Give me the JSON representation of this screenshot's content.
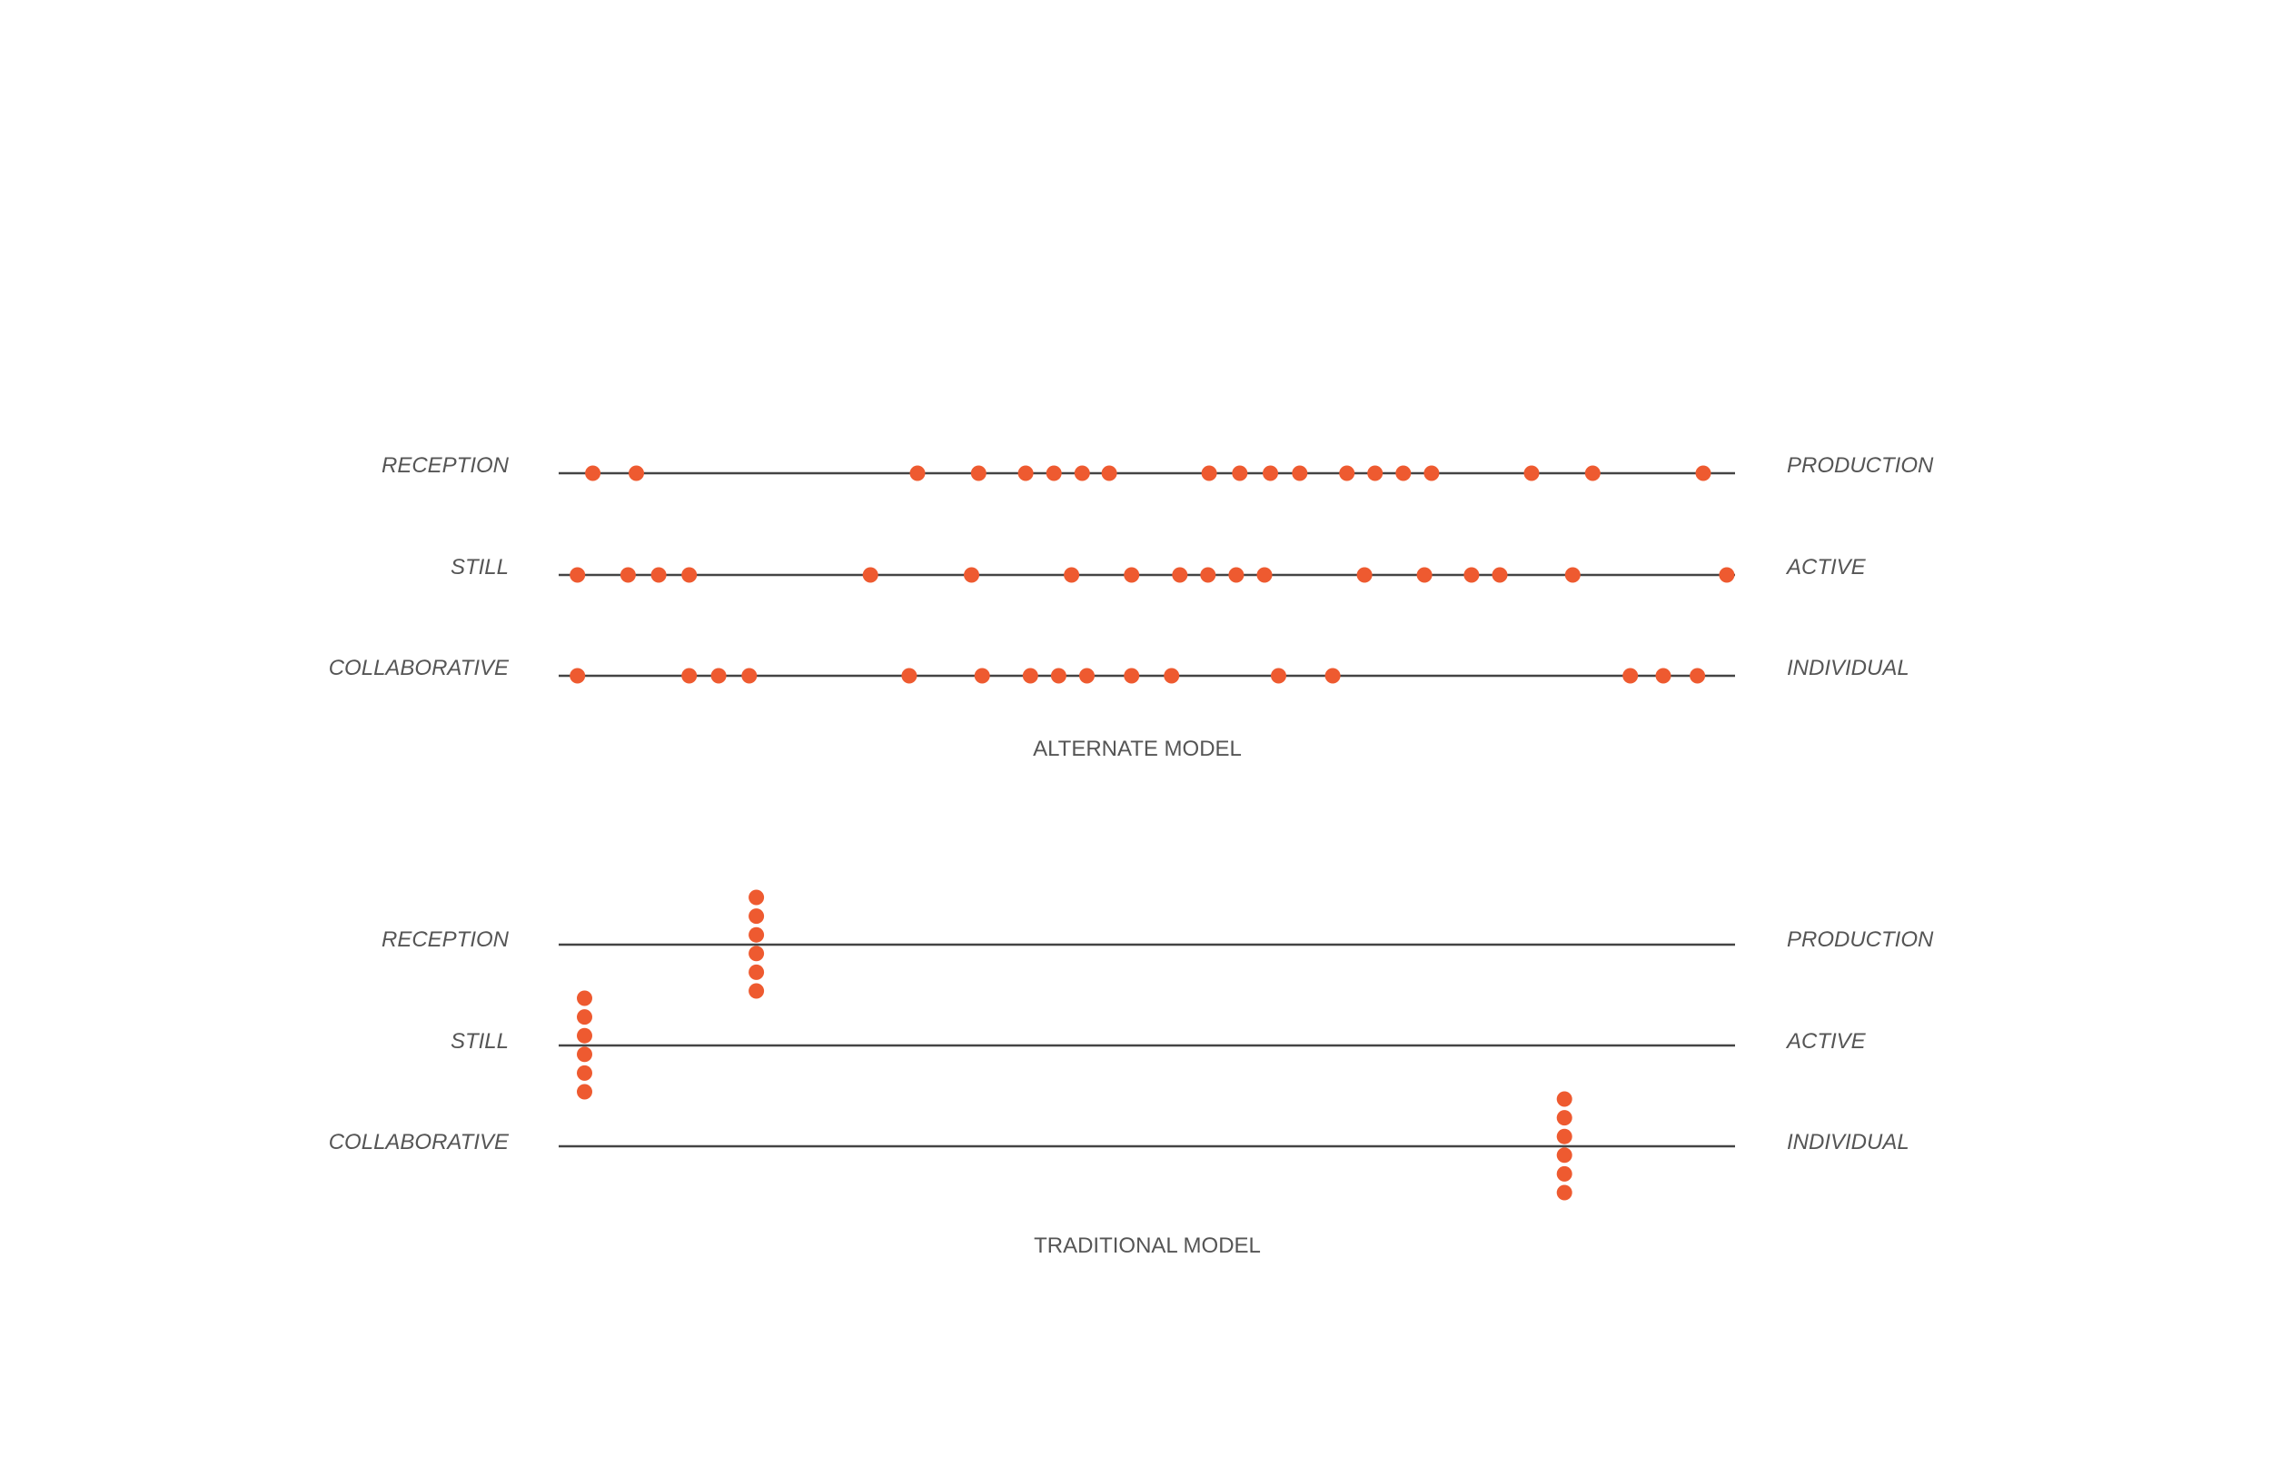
{
  "colors": {
    "dot": "#ee5a30",
    "line": "#444444",
    "text": "#555555"
  },
  "models": [
    {
      "title": "ALTERNATE MODEL",
      "layout": "on-line",
      "scales": [
        {
          "left": "RECEPTION",
          "right": "PRODUCTION",
          "positions": [
            0.029,
            0.066,
            0.305,
            0.357,
            0.397,
            0.421,
            0.445,
            0.468,
            0.553,
            0.579,
            0.605,
            0.63,
            0.67,
            0.694,
            0.718,
            0.742,
            0.827,
            0.879,
            0.973
          ]
        },
        {
          "left": "STILL",
          "right": "ACTIVE",
          "positions": [
            0.016,
            0.059,
            0.085,
            0.111,
            0.265,
            0.351,
            0.436,
            0.487,
            0.528,
            0.552,
            0.576,
            0.6,
            0.685,
            0.736,
            0.776,
            0.8,
            0.862,
            0.993
          ]
        },
        {
          "left": "COLLABORATIVE",
          "right": "INDIVIDUAL",
          "positions": [
            0.016,
            0.111,
            0.136,
            0.162,
            0.298,
            0.36,
            0.401,
            0.425,
            0.449,
            0.487,
            0.521,
            0.612,
            0.658,
            0.911,
            0.939,
            0.968
          ]
        }
      ]
    },
    {
      "title": "TRADITIONAL MODEL",
      "layout": "stacked",
      "scales": [
        {
          "left": "RECEPTION",
          "right": "PRODUCTION",
          "cluster_position": 0.168,
          "cluster_count": 6
        },
        {
          "left": "STILL",
          "right": "ACTIVE",
          "cluster_position": 0.022,
          "cluster_count": 6
        },
        {
          "left": "COLLABORATIVE",
          "right": "INDIVIDUAL",
          "cluster_position": 0.855,
          "cluster_count": 6
        }
      ]
    }
  ]
}
